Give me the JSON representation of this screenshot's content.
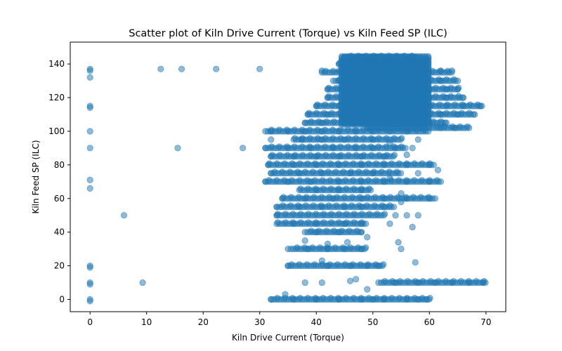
{
  "chart_data": {
    "type": "scatter",
    "title": "Scatter plot of Kiln Drive Current (Torque) vs Kiln Feed  SP  (ILC)",
    "xlabel": "Kiln Drive Current (Torque)",
    "ylabel": "Kiln Feed  SP  (ILC)",
    "xlim": [
      -3.5,
      73.5
    ],
    "ylim": [
      -7.3,
      153
    ],
    "x_ticks": [
      0,
      10,
      20,
      30,
      40,
      50,
      60,
      70
    ],
    "y_ticks": [
      0,
      20,
      40,
      60,
      80,
      100,
      120,
      140
    ],
    "grid": false,
    "legend": "none",
    "marker_color": "#1f77b4",
    "marker_alpha": 0.5,
    "points": [
      [
        0,
        137
      ],
      [
        0,
        136
      ],
      [
        0,
        132
      ],
      [
        0,
        115
      ],
      [
        0,
        114
      ],
      [
        0,
        100
      ],
      [
        0,
        90
      ],
      [
        0,
        71
      ],
      [
        0,
        66
      ],
      [
        0,
        20
      ],
      [
        0,
        19
      ],
      [
        0,
        10
      ],
      [
        0,
        9
      ],
      [
        0,
        0
      ],
      [
        0,
        -1
      ],
      [
        12.5,
        137
      ],
      [
        16.2,
        137
      ],
      [
        22.3,
        137
      ],
      [
        30,
        137
      ],
      [
        15.5,
        90
      ],
      [
        27,
        90
      ],
      [
        6,
        50
      ],
      [
        9.3,
        10
      ],
      [
        34.5,
        3
      ],
      [
        32,
        0
      ],
      [
        36,
        0
      ],
      [
        40,
        0
      ],
      [
        44,
        0
      ],
      [
        48,
        0
      ],
      [
        50,
        0
      ],
      [
        52,
        0
      ],
      [
        56,
        0
      ],
      [
        58,
        0
      ],
      [
        59.5,
        0
      ],
      [
        38,
        10
      ],
      [
        41,
        10
      ],
      [
        47,
        12
      ],
      [
        49,
        6
      ],
      [
        46,
        11
      ],
      [
        54,
        10
      ],
      [
        58,
        10
      ],
      [
        61,
        10
      ],
      [
        64,
        10
      ],
      [
        67,
        10
      ],
      [
        69.5,
        10
      ],
      [
        35,
        20
      ],
      [
        42,
        20
      ],
      [
        46,
        20
      ],
      [
        49,
        20
      ],
      [
        51,
        20
      ],
      [
        41,
        23
      ],
      [
        57.5,
        22
      ],
      [
        35,
        30
      ],
      [
        38.5,
        30
      ],
      [
        42,
        30
      ],
      [
        45,
        30
      ],
      [
        48,
        30
      ],
      [
        45.5,
        34
      ],
      [
        55,
        30
      ],
      [
        54.5,
        34
      ],
      [
        33,
        50
      ],
      [
        36,
        45
      ],
      [
        40,
        45
      ],
      [
        45,
        45
      ],
      [
        48,
        45
      ],
      [
        40,
        40
      ],
      [
        44,
        40
      ],
      [
        48,
        40
      ],
      [
        38,
        35
      ],
      [
        42,
        33
      ],
      [
        49,
        37
      ],
      [
        33,
        55
      ],
      [
        37,
        55
      ],
      [
        41,
        55
      ],
      [
        45,
        55
      ],
      [
        48,
        55
      ],
      [
        52,
        55
      ],
      [
        55,
        58
      ],
      [
        54,
        50
      ],
      [
        56,
        50
      ],
      [
        58,
        50
      ],
      [
        57,
        43
      ],
      [
        53,
        45
      ],
      [
        34,
        60
      ],
      [
        38,
        60
      ],
      [
        43,
        60
      ],
      [
        48,
        60
      ],
      [
        52,
        60
      ],
      [
        56,
        60
      ],
      [
        60,
        60
      ],
      [
        61,
        60
      ],
      [
        40,
        65
      ],
      [
        44,
        65
      ],
      [
        48,
        65
      ],
      [
        55,
        63
      ],
      [
        31,
        70
      ],
      [
        35,
        70
      ],
      [
        39,
        70
      ],
      [
        44,
        70
      ],
      [
        48,
        70
      ],
      [
        52,
        70
      ],
      [
        56,
        70
      ],
      [
        60,
        70
      ],
      [
        62,
        70
      ],
      [
        32,
        75
      ],
      [
        37,
        75
      ],
      [
        41,
        75
      ],
      [
        46,
        75
      ],
      [
        50,
        75
      ],
      [
        53,
        72
      ],
      [
        58,
        75
      ],
      [
        31.5,
        80
      ],
      [
        36,
        80
      ],
      [
        40,
        80
      ],
      [
        44,
        80
      ],
      [
        48,
        80
      ],
      [
        52,
        80
      ],
      [
        56,
        80
      ],
      [
        60,
        80
      ],
      [
        61.5,
        77
      ],
      [
        32,
        85
      ],
      [
        36,
        85
      ],
      [
        40,
        85
      ],
      [
        44,
        85
      ],
      [
        48,
        85
      ],
      [
        52,
        85
      ],
      [
        56,
        86
      ],
      [
        31,
        90
      ],
      [
        35,
        90
      ],
      [
        39,
        90
      ],
      [
        43,
        90
      ],
      [
        47,
        90
      ],
      [
        50,
        90
      ],
      [
        54,
        90
      ],
      [
        57,
        90
      ],
      [
        32,
        95
      ],
      [
        37.5,
        95
      ],
      [
        41,
        95
      ],
      [
        45,
        95
      ],
      [
        50,
        95
      ],
      [
        53,
        93
      ],
      [
        58,
        95
      ],
      [
        32,
        100
      ],
      [
        35,
        100
      ],
      [
        38,
        100
      ],
      [
        41,
        100
      ],
      [
        44,
        100
      ],
      [
        47,
        100
      ],
      [
        50,
        100
      ],
      [
        53,
        100
      ],
      [
        56,
        100
      ],
      [
        38.5,
        110
      ],
      [
        42,
        110
      ],
      [
        46,
        110
      ],
      [
        50,
        110
      ],
      [
        54,
        110
      ],
      [
        58,
        110
      ],
      [
        62,
        110
      ],
      [
        65,
        110
      ],
      [
        68,
        110
      ],
      [
        40,
        115
      ],
      [
        44,
        115
      ],
      [
        48,
        115
      ],
      [
        52,
        115
      ],
      [
        56,
        115
      ],
      [
        60,
        115
      ],
      [
        63,
        115
      ],
      [
        66,
        115
      ],
      [
        69,
        115
      ],
      [
        56,
        102
      ],
      [
        59,
        102
      ],
      [
        62,
        102
      ],
      [
        64.5,
        102
      ],
      [
        67,
        102
      ],
      [
        42,
        120
      ],
      [
        45,
        120
      ],
      [
        48,
        120
      ],
      [
        51,
        120
      ],
      [
        54,
        120
      ],
      [
        57,
        120
      ],
      [
        60,
        120
      ],
      [
        63,
        120
      ],
      [
        66,
        120
      ],
      [
        42,
        125
      ],
      [
        45,
        125
      ],
      [
        48,
        125
      ],
      [
        51,
        125
      ],
      [
        54,
        125
      ],
      [
        57,
        125
      ],
      [
        60,
        125
      ],
      [
        63,
        125
      ],
      [
        65,
        125
      ],
      [
        44,
        130
      ],
      [
        47,
        130
      ],
      [
        50,
        130
      ],
      [
        53,
        130
      ],
      [
        56,
        130
      ],
      [
        59,
        130
      ],
      [
        62,
        130
      ],
      [
        65,
        130
      ],
      [
        41,
        136
      ],
      [
        44,
        136
      ],
      [
        47,
        136
      ],
      [
        50,
        136
      ],
      [
        53,
        136
      ],
      [
        56,
        136
      ],
      [
        59,
        136
      ],
      [
        62,
        136
      ],
      [
        64,
        136
      ],
      [
        44,
        140
      ],
      [
        47,
        140
      ],
      [
        50,
        140
      ],
      [
        53,
        140
      ],
      [
        56,
        140
      ],
      [
        59,
        140
      ],
      [
        45,
        144
      ],
      [
        48,
        144
      ],
      [
        51,
        144
      ],
      [
        54,
        144
      ],
      [
        57,
        144
      ],
      [
        38,
        105
      ],
      [
        41,
        105
      ],
      [
        45,
        105
      ],
      [
        49,
        105
      ],
      [
        53,
        105
      ],
      [
        57,
        105
      ],
      [
        60,
        105
      ],
      [
        63,
        105
      ]
    ],
    "bands": [
      {
        "y": 0,
        "x": [
          32,
          60
        ]
      },
      {
        "y": 10,
        "x": [
          51,
          70
        ]
      },
      {
        "y": 20,
        "x": [
          35,
          52
        ]
      },
      {
        "y": 30,
        "x": [
          35.5,
          49
        ]
      },
      {
        "y": 40,
        "x": [
          38,
          48
        ]
      },
      {
        "y": 45,
        "x": [
          33,
          49
        ]
      },
      {
        "y": 50,
        "x": [
          33,
          52
        ]
      },
      {
        "y": 55,
        "x": [
          33,
          54
        ]
      },
      {
        "y": 60,
        "x": [
          34,
          61
        ]
      },
      {
        "y": 65,
        "x": [
          37,
          50
        ]
      },
      {
        "y": 70,
        "x": [
          31,
          62
        ]
      },
      {
        "y": 75,
        "x": [
          32,
          55
        ]
      },
      {
        "y": 80,
        "x": [
          31.5,
          61
        ]
      },
      {
        "y": 85,
        "x": [
          32,
          54
        ]
      },
      {
        "y": 90,
        "x": [
          31,
          56
        ]
      },
      {
        "y": 95,
        "x": [
          36,
          55
        ]
      },
      {
        "y": 100,
        "x": [
          31,
          60
        ]
      },
      {
        "y": 102,
        "x": [
          49,
          67
        ]
      },
      {
        "y": 105,
        "x": [
          38,
          63
        ]
      },
      {
        "y": 110,
        "x": [
          38.5,
          68
        ]
      },
      {
        "y": 115,
        "x": [
          40,
          69.5
        ]
      },
      {
        "y": 120,
        "x": [
          42,
          66
        ]
      },
      {
        "y": 125,
        "x": [
          42,
          65
        ]
      },
      {
        "y": 130,
        "x": [
          43,
          65
        ]
      },
      {
        "y": 135,
        "x": [
          41,
          64
        ]
      },
      {
        "y": 140,
        "x": [
          44,
          59
        ]
      },
      {
        "y": 144,
        "x": [
          45,
          58
        ]
      }
    ],
    "blob": {
      "x": [
        44.5,
        60
      ],
      "y": [
        104,
        145
      ]
    }
  }
}
